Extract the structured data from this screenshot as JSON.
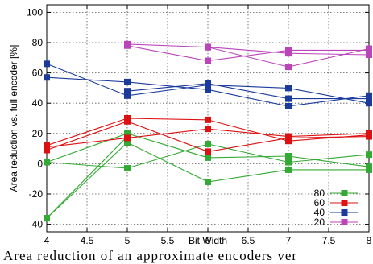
{
  "chart_data": {
    "type": "line",
    "xlabel": "Bit Width",
    "ylabel": "Area reduction vs. full encoder [%]",
    "xlim": [
      4,
      8
    ],
    "ylim": [
      -45,
      105
    ],
    "xticks": [
      "4",
      "4.5",
      "5",
      "5.5",
      "6",
      "6.5",
      "7",
      "7.5",
      "8"
    ],
    "yticks": [
      "-40",
      "-20",
      "0",
      "20",
      "40",
      "60",
      "80",
      "100"
    ],
    "grid": true,
    "legend_position": "bottom-right",
    "series": [
      {
        "name": "80",
        "color": "#33aa33",
        "lines": [
          [
            [
              4,
              1
            ],
            [
              5,
              20
            ],
            [
              6,
              4
            ],
            [
              7,
              5
            ],
            [
              8,
              -2
            ]
          ],
          [
            [
              4,
              1
            ],
            [
              5,
              -3
            ],
            [
              6,
              13
            ],
            [
              7,
              1
            ],
            [
              8,
              6
            ]
          ],
          [
            [
              4,
              -36
            ],
            [
              5,
              14
            ],
            [
              6,
              -12
            ],
            [
              7,
              -4
            ],
            [
              8,
              -4
            ]
          ],
          [
            [
              4,
              -36
            ],
            [
              5,
              18
            ]
          ]
        ]
      },
      {
        "name": "60",
        "color": "#dd1111",
        "lines": [
          [
            [
              4,
              12
            ],
            [
              5,
              30
            ],
            [
              6,
              29
            ],
            [
              7,
              15
            ],
            [
              8,
              19
            ]
          ],
          [
            [
              4,
              9
            ],
            [
              5,
              28
            ],
            [
              6,
              8
            ],
            [
              7,
              17
            ],
            [
              8,
              18
            ]
          ],
          [
            [
              4,
              11
            ],
            [
              5,
              17
            ],
            [
              6,
              23
            ],
            [
              7,
              18
            ],
            [
              8,
              20
            ]
          ]
        ]
      },
      {
        "name": "40",
        "color": "#1a3a9c",
        "lines": [
          [
            [
              4,
              66
            ],
            [
              5,
              45
            ],
            [
              6,
              52
            ],
            [
              7,
              50
            ],
            [
              8,
              40
            ]
          ],
          [
            [
              4,
              57
            ],
            [
              5,
              54
            ],
            [
              6,
              49
            ],
            [
              7,
              38
            ],
            [
              8,
              45
            ]
          ],
          [
            [
              5,
              48
            ],
            [
              6,
              53
            ],
            [
              7,
              43
            ],
            [
              8,
              43
            ]
          ]
        ]
      },
      {
        "name": "20",
        "color": "#bb44bb",
        "lines": [
          [
            [
              5,
              79
            ],
            [
              6,
              77
            ],
            [
              7,
              73
            ],
            [
              8,
              72
            ]
          ],
          [
            [
              5,
              78
            ],
            [
              6,
              68
            ],
            [
              7,
              75
            ],
            [
              8,
              75
            ]
          ],
          [
            [
              6,
              77
            ],
            [
              7,
              64
            ],
            [
              8,
              76
            ]
          ]
        ]
      }
    ]
  },
  "caption": "Area reduction of an approximate encoders ver"
}
